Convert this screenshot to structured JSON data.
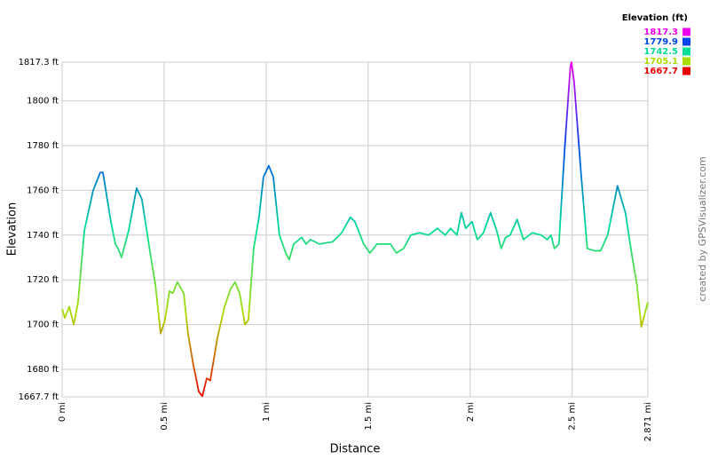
{
  "chart_data": {
    "type": "line",
    "x_label": "Distance",
    "y_label": "Elevation",
    "credit": "created by GPSVisualizer.com",
    "legend": {
      "title": "Elevation (ft)",
      "entries": [
        {
          "value": 1817.3,
          "color": "#ee00ee"
        },
        {
          "value": 1779.9,
          "color": "#0044ee"
        },
        {
          "value": 1742.5,
          "color": "#00dd99"
        },
        {
          "value": 1705.1,
          "color": "#aadd00"
        },
        {
          "value": 1667.7,
          "color": "#ee0000"
        }
      ]
    },
    "xlim": [
      0,
      2.871
    ],
    "ylim": [
      1667.7,
      1817.3
    ],
    "grid": true,
    "xticks": [
      {
        "value": 0,
        "label": "0 mi"
      },
      {
        "value": 0.5,
        "label": "0.5 mi"
      },
      {
        "value": 1,
        "label": "1 mi"
      },
      {
        "value": 1.5,
        "label": "1.5 mi"
      },
      {
        "value": 2,
        "label": "2 mi"
      },
      {
        "value": 2.5,
        "label": "2.5 mi"
      },
      {
        "value": 2.871,
        "label": "2.871 mi"
      }
    ],
    "yticks": [
      {
        "value": 1667.7,
        "label": "1667.7 ft"
      },
      {
        "value": 1680,
        "label": "1680 ft"
      },
      {
        "value": 1700,
        "label": "1700 ft"
      },
      {
        "value": 1720,
        "label": "1720 ft"
      },
      {
        "value": 1740,
        "label": "1740 ft"
      },
      {
        "value": 1760,
        "label": "1760 ft"
      },
      {
        "value": 1780,
        "label": "1780 ft"
      },
      {
        "value": 1800,
        "label": "1800 ft"
      },
      {
        "value": 1817.3,
        "label": "1817.3 ft"
      }
    ],
    "x": [
      0,
      0.013,
      0.035,
      0.057,
      0.078,
      0.109,
      0.152,
      0.187,
      0.2,
      0.239,
      0.261,
      0.274,
      0.291,
      0.326,
      0.365,
      0.391,
      0.435,
      0.457,
      0.483,
      0.504,
      0.526,
      0.543,
      0.565,
      0.596,
      0.617,
      0.643,
      0.67,
      0.687,
      0.709,
      0.726,
      0.761,
      0.796,
      0.826,
      0.848,
      0.87,
      0.896,
      0.913,
      0.939,
      0.965,
      0.987,
      1.013,
      1.035,
      1.065,
      1.096,
      1.113,
      1.135,
      1.174,
      1.196,
      1.217,
      1.261,
      1.326,
      1.37,
      1.413,
      1.435,
      1.478,
      1.509,
      1.543,
      1.609,
      1.639,
      1.674,
      1.709,
      1.752,
      1.796,
      1.839,
      1.878,
      1.904,
      1.935,
      1.957,
      1.978,
      2.009,
      2.035,
      2.065,
      2.1,
      2.13,
      2.152,
      2.174,
      2.196,
      2.23,
      2.261,
      2.304,
      2.348,
      2.378,
      2.396,
      2.413,
      2.435,
      2.465,
      2.491,
      2.496,
      2.509,
      2.543,
      2.574,
      2.609,
      2.639,
      2.674,
      2.722,
      2.761,
      2.791,
      2.817,
      2.839,
      2.871
    ],
    "values": [
      1707,
      1703,
      1708,
      1700,
      1710,
      1742,
      1760,
      1768,
      1768,
      1746,
      1736,
      1734,
      1730,
      1742,
      1761,
      1756,
      1730,
      1718,
      1696,
      1702,
      1715,
      1714,
      1719,
      1714,
      1696,
      1682,
      1670,
      1668,
      1676,
      1675,
      1694,
      1708,
      1716,
      1719,
      1714,
      1700,
      1702,
      1734,
      1748,
      1766,
      1771,
      1766,
      1740,
      1732,
      1729,
      1736,
      1739,
      1736,
      1738,
      1736,
      1737,
      1741,
      1748,
      1746,
      1736,
      1732,
      1736,
      1736,
      1732,
      1734,
      1740,
      1741,
      1740,
      1743,
      1740,
      1743,
      1740,
      1750,
      1743,
      1746,
      1738,
      1741,
      1750,
      1742,
      1734,
      1739,
      1740,
      1747,
      1738,
      1741,
      1740,
      1738,
      1740,
      1734,
      1736,
      1781,
      1815,
      1817.3,
      1809,
      1768,
      1734,
      1733,
      1733,
      1740,
      1762,
      1750,
      1732,
      1718,
      1699,
      1710
    ]
  }
}
